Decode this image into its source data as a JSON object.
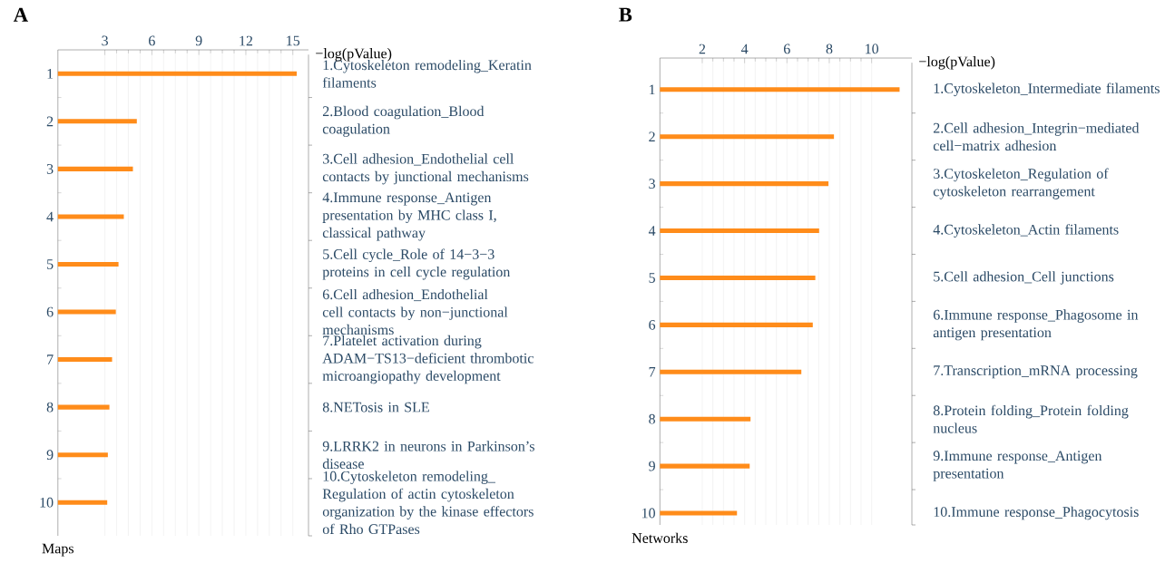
{
  "chart_data": [
    {
      "type": "bar",
      "orientation": "horizontal",
      "title": "A",
      "xlabel": "−log(pValue)",
      "ylabel": "Maps",
      "color": "#ff8c1a",
      "grid": "x",
      "categories": [
        "1",
        "2",
        "3",
        "4",
        "5",
        "6",
        "7",
        "8",
        "9",
        "10"
      ],
      "values": [
        15.25,
        5.04,
        4.79,
        4.21,
        3.87,
        3.7,
        3.46,
        3.29,
        3.19,
        3.15
      ],
      "xlim": [
        0,
        16
      ],
      "xticks": [
        3,
        6,
        9,
        12,
        15
      ],
      "annotations": [
        "1.Cytoskeleton remodeling_Keratin filaments",
        "2.Blood coagulation_Blood coagulation",
        "3.Cell adhesion_Endothelial cell contacts by junctional mechanisms",
        "4.Immune response_Antigen presentation by MHC class I, classical pathway",
        "5.Cell cycle_Role of 14−3−3 proteins in cell cycle regulation",
        "6.Cell adhesion_Endothelial cell contacts by non−junctional mechanisms",
        "7.Platelet activation during ADAM−TS13−deficient thrombotic microangiopathy development",
        "8.NETosis in SLE",
        "9.LRRK2 in neurons in Parkinson’s disease",
        "10.Cytoskeleton remodeling_ Regulation of actin cytoskeleton organization by the kinase effectors of Rho GTPases"
      ]
    },
    {
      "type": "bar",
      "orientation": "horizontal",
      "title": "B",
      "xlabel": "−log(pValue)",
      "ylabel": "Networks",
      "color": "#ff8c1a",
      "grid": "x",
      "categories": [
        "1",
        "2",
        "3",
        "4",
        "5",
        "6",
        "7",
        "8",
        "9",
        "10"
      ],
      "values": [
        11.32,
        8.22,
        7.96,
        7.52,
        7.34,
        7.22,
        6.68,
        4.28,
        4.24,
        3.64
      ],
      "xlim": [
        0,
        11.9
      ],
      "xticks": [
        2,
        4,
        6,
        8,
        10
      ],
      "annotations": [
        "1.Cytoskeleton_Intermediate filaments",
        "2.Cell adhesion_Integrin−mediated cell−matrix adhesion",
        "3.Cytoskeleton_Regulation of cytoskeleton rearrangement",
        "4.Cytoskeleton_Actin filaments",
        "5.Cell adhesion_Cell junctions",
        "6.Immune response_Phagosome in antigen presentation",
        "7.Transcription_mRNA processing",
        "8.Protein folding_Protein folding nucleus",
        "9.Immune response_Antigen presentation",
        "10.Immune response_Phagocytosis"
      ]
    }
  ]
}
